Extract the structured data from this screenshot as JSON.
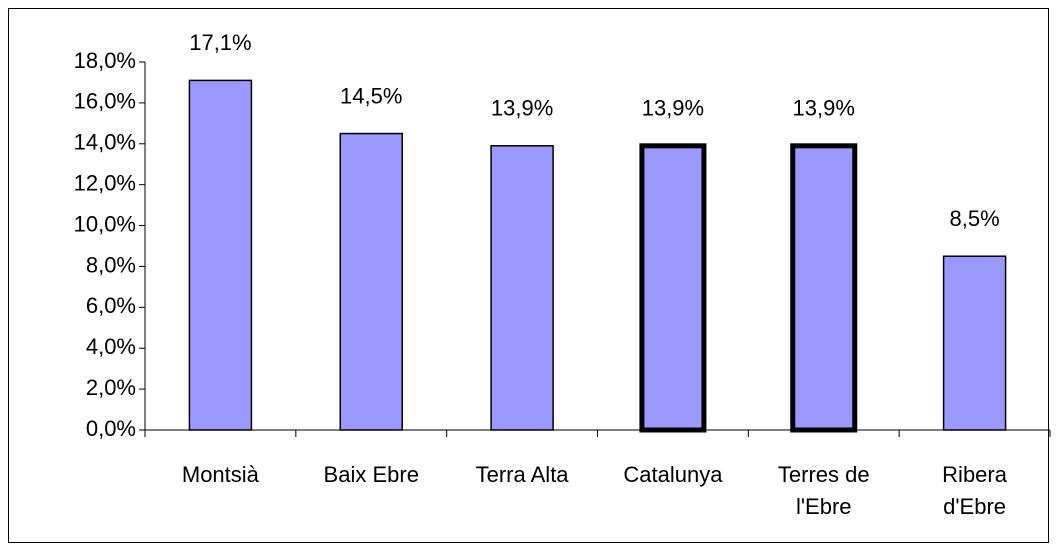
{
  "chart_data": {
    "type": "bar",
    "categories": [
      "Montsià",
      "Baix Ebre",
      "Terra Alta",
      "Catalunya",
      "Terres de l'Ebre",
      "Ribera d'Ebre"
    ],
    "values": [
      17.1,
      14.5,
      13.9,
      13.9,
      13.9,
      8.5
    ],
    "value_labels": [
      "17,1%",
      "14,5%",
      "13,9%",
      "13,9%",
      "13,9%",
      "8,5%"
    ],
    "highlight": [
      false,
      false,
      false,
      true,
      true,
      false
    ],
    "color": "#9999ff",
    "ylim": [
      0,
      18
    ],
    "yticks": [
      {
        "value": 0,
        "label": "0,0%"
      },
      {
        "value": 2,
        "label": "2,0%"
      },
      {
        "value": 4,
        "label": "4,0%"
      },
      {
        "value": 6,
        "label": "6,0%"
      },
      {
        "value": 8,
        "label": "8,0%"
      },
      {
        "value": 10,
        "label": "10,0%"
      },
      {
        "value": 12,
        "label": "12,0%"
      },
      {
        "value": 14,
        "label": "14,0%"
      },
      {
        "value": 16,
        "label": "16,0%"
      },
      {
        "value": 18,
        "label": "18,0%"
      }
    ],
    "grid": false
  }
}
